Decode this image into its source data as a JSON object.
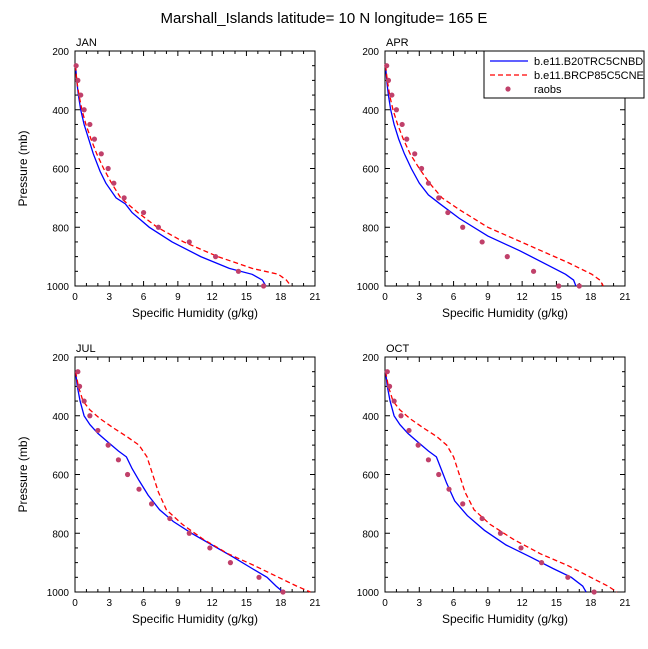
{
  "title": "Marshall_Islands  latitude= 10 N longitude= 165 E",
  "colors": {
    "model1": "#0000ff",
    "model2": "#ff0000",
    "obs": "#c0406a",
    "frame": "#000000"
  },
  "legend": {
    "placement": "top-right of APR panel",
    "entries": [
      {
        "label": "b.e11.B20TRC5CNBD",
        "style": "solid-line"
      },
      {
        "label": "b.e11.BRCP85C5CNE",
        "style": "dashed-line"
      },
      {
        "label": "raobs",
        "style": "dot"
      }
    ]
  },
  "chart_data": [
    {
      "type": "line",
      "panel_label": "JAN",
      "xlabel": "Specific Humidity (g/kg)",
      "ylabel": "Pressure (mb)",
      "xlim": [
        0,
        21
      ],
      "ylim": [
        1000,
        200
      ],
      "y_inverted": true,
      "xticks": [
        0,
        3,
        6,
        9,
        12,
        15,
        18,
        21
      ],
      "yticks": [
        200,
        400,
        600,
        800,
        1000
      ],
      "series": [
        {
          "name": "b.e11.B20TRC5CNBD",
          "style": "solid",
          "x": [
            0.05,
            0.15,
            0.3,
            0.5,
            0.8,
            1.2,
            1.6,
            2.2,
            2.7,
            3.6,
            4.4,
            5.0,
            6.5,
            8.5,
            11.0,
            13.5,
            15.5,
            16.4,
            16.7
          ],
          "y": [
            250,
            300,
            350,
            400,
            450,
            500,
            550,
            610,
            650,
            700,
            720,
            750,
            800,
            850,
            900,
            940,
            960,
            980,
            1000
          ]
        },
        {
          "name": "b.e11.BRCP85C5CNE",
          "style": "dashed",
          "x": [
            0.05,
            0.15,
            0.35,
            0.6,
            0.95,
            1.4,
            1.9,
            2.5,
            3.2,
            4.0,
            4.6,
            5.5,
            7.2,
            9.5,
            12.5,
            15.5,
            17.8,
            18.5,
            18.9
          ],
          "y": [
            250,
            300,
            350,
            400,
            450,
            500,
            550,
            600,
            650,
            700,
            720,
            750,
            800,
            850,
            900,
            940,
            960,
            980,
            1000
          ]
        },
        {
          "name": "raobs",
          "style": "dots",
          "x": [
            0.1,
            0.25,
            0.5,
            0.8,
            1.3,
            1.7,
            2.3,
            2.9,
            3.4,
            4.3,
            6.0,
            7.3,
            10.0,
            12.3,
            14.3,
            16.5
          ],
          "y": [
            250,
            300,
            350,
            400,
            450,
            500,
            550,
            600,
            650,
            700,
            750,
            800,
            850,
            900,
            950,
            1000
          ]
        }
      ]
    },
    {
      "type": "line",
      "panel_label": "APR",
      "xlabel": "Specific Humidity (g/kg)",
      "ylabel": "",
      "xlim": [
        0,
        21
      ],
      "ylim": [
        1000,
        200
      ],
      "y_inverted": true,
      "xticks": [
        0,
        3,
        6,
        9,
        12,
        15,
        18,
        21
      ],
      "yticks": [
        200,
        400,
        600,
        800,
        1000
      ],
      "series": [
        {
          "name": "b.e11.B20TRC5CNBD",
          "style": "solid",
          "x": [
            0.05,
            0.15,
            0.3,
            0.5,
            0.8,
            1.2,
            1.7,
            2.3,
            3.0,
            3.8,
            4.8,
            6.5,
            9.0,
            11.8,
            14.3,
            15.8,
            16.5,
            16.7
          ],
          "y": [
            250,
            300,
            350,
            400,
            450,
            500,
            550,
            600,
            650,
            690,
            720,
            770,
            830,
            880,
            930,
            960,
            980,
            1000
          ]
        },
        {
          "name": "b.e11.BRCP85C5CNE",
          "style": "dashed",
          "x": [
            0.05,
            0.2,
            0.4,
            0.7,
            1.1,
            1.6,
            2.2,
            3.0,
            3.9,
            5.0,
            6.5,
            9.0,
            12.5,
            16.0,
            18.1,
            18.8,
            19.1
          ],
          "y": [
            250,
            300,
            350,
            400,
            450,
            500,
            550,
            600,
            650,
            700,
            740,
            800,
            860,
            920,
            960,
            980,
            1000
          ]
        },
        {
          "name": "raobs",
          "style": "dots",
          "x": [
            0.15,
            0.3,
            0.6,
            1.0,
            1.5,
            1.9,
            2.6,
            3.2,
            3.8,
            4.7,
            5.5,
            6.8,
            8.5,
            10.7,
            13.0,
            15.2,
            17.0
          ],
          "y": [
            250,
            300,
            350,
            400,
            450,
            500,
            550,
            600,
            650,
            700,
            750,
            800,
            850,
            900,
            950,
            1000,
            1000
          ]
        }
      ]
    },
    {
      "type": "line",
      "panel_label": "JUL",
      "xlabel": "Specific Humidity (g/kg)",
      "ylabel": "Pressure (mb)",
      "xlim": [
        0,
        21
      ],
      "ylim": [
        1000,
        200
      ],
      "y_inverted": true,
      "xticks": [
        0,
        3,
        6,
        9,
        12,
        15,
        18,
        21
      ],
      "yticks": [
        200,
        400,
        600,
        800,
        1000
      ],
      "series": [
        {
          "name": "b.e11.B20TRC5CNBD",
          "style": "solid",
          "x": [
            0.05,
            0.2,
            0.45,
            0.8,
            1.3,
            2.0,
            2.9,
            3.8,
            4.5,
            5.0,
            5.6,
            6.4,
            7.4,
            8.6,
            10.2,
            12.0,
            13.8,
            15.5,
            16.8,
            17.6,
            18.2
          ],
          "y": [
            250,
            300,
            350,
            400,
            430,
            460,
            490,
            520,
            540,
            580,
            620,
            670,
            720,
            760,
            800,
            840,
            880,
            920,
            950,
            980,
            1000
          ]
        },
        {
          "name": "b.e11.BRCP85C5CNE",
          "style": "dashed",
          "x": [
            0.05,
            0.3,
            0.7,
            1.3,
            2.2,
            3.3,
            4.5,
            5.6,
            6.3,
            6.8,
            7.3,
            8.0,
            9.4,
            11.2,
            13.4,
            15.7,
            17.8,
            19.4,
            20.6
          ],
          "y": [
            250,
            300,
            350,
            380,
            410,
            440,
            470,
            500,
            540,
            600,
            660,
            720,
            770,
            820,
            870,
            910,
            950,
            980,
            1000
          ]
        },
        {
          "name": "raobs",
          "style": "dots",
          "x": [
            0.25,
            0.4,
            0.8,
            1.3,
            2.0,
            2.9,
            3.8,
            4.6,
            5.6,
            6.7,
            8.3,
            10.0,
            11.8,
            13.6,
            16.1,
            18.2
          ],
          "y": [
            250,
            300,
            350,
            400,
            450,
            500,
            550,
            600,
            650,
            700,
            750,
            800,
            850,
            900,
            950,
            1000
          ]
        }
      ]
    },
    {
      "type": "line",
      "panel_label": "OCT",
      "xlabel": "Specific Humidity (g/kg)",
      "ylabel": "",
      "xlim": [
        0,
        21
      ],
      "ylim": [
        1000,
        200
      ],
      "y_inverted": true,
      "xticks": [
        0,
        3,
        6,
        9,
        12,
        15,
        18,
        21
      ],
      "yticks": [
        200,
        400,
        600,
        800,
        1000
      ],
      "series": [
        {
          "name": "b.e11.B20TRC5CNBD",
          "style": "solid",
          "x": [
            0.05,
            0.2,
            0.45,
            0.8,
            1.3,
            2.0,
            2.9,
            3.8,
            4.5,
            4.9,
            5.4,
            6.1,
            7.2,
            8.7,
            10.6,
            12.7,
            14.7,
            16.3,
            17.3,
            17.6
          ],
          "y": [
            250,
            300,
            350,
            400,
            430,
            460,
            490,
            520,
            540,
            580,
            630,
            690,
            740,
            790,
            840,
            880,
            920,
            950,
            980,
            1000
          ]
        },
        {
          "name": "b.e11.BRCP85C5CNE",
          "style": "dashed",
          "x": [
            0.05,
            0.3,
            0.7,
            1.3,
            2.2,
            3.3,
            4.5,
            5.4,
            6.0,
            6.5,
            7.0,
            7.8,
            9.2,
            11.2,
            13.6,
            16.0,
            18.0,
            19.5,
            20.3
          ],
          "y": [
            250,
            300,
            350,
            380,
            410,
            440,
            470,
            500,
            540,
            600,
            660,
            720,
            770,
            820,
            870,
            910,
            950,
            980,
            1000
          ]
        },
        {
          "name": "raobs",
          "style": "dots",
          "x": [
            0.2,
            0.4,
            0.8,
            1.4,
            2.1,
            2.9,
            3.8,
            4.7,
            5.6,
            6.8,
            8.5,
            10.1,
            11.9,
            13.7,
            16.0,
            18.3
          ],
          "y": [
            250,
            300,
            350,
            400,
            450,
            500,
            550,
            600,
            650,
            700,
            750,
            800,
            850,
            900,
            950,
            1000
          ]
        }
      ]
    }
  ]
}
